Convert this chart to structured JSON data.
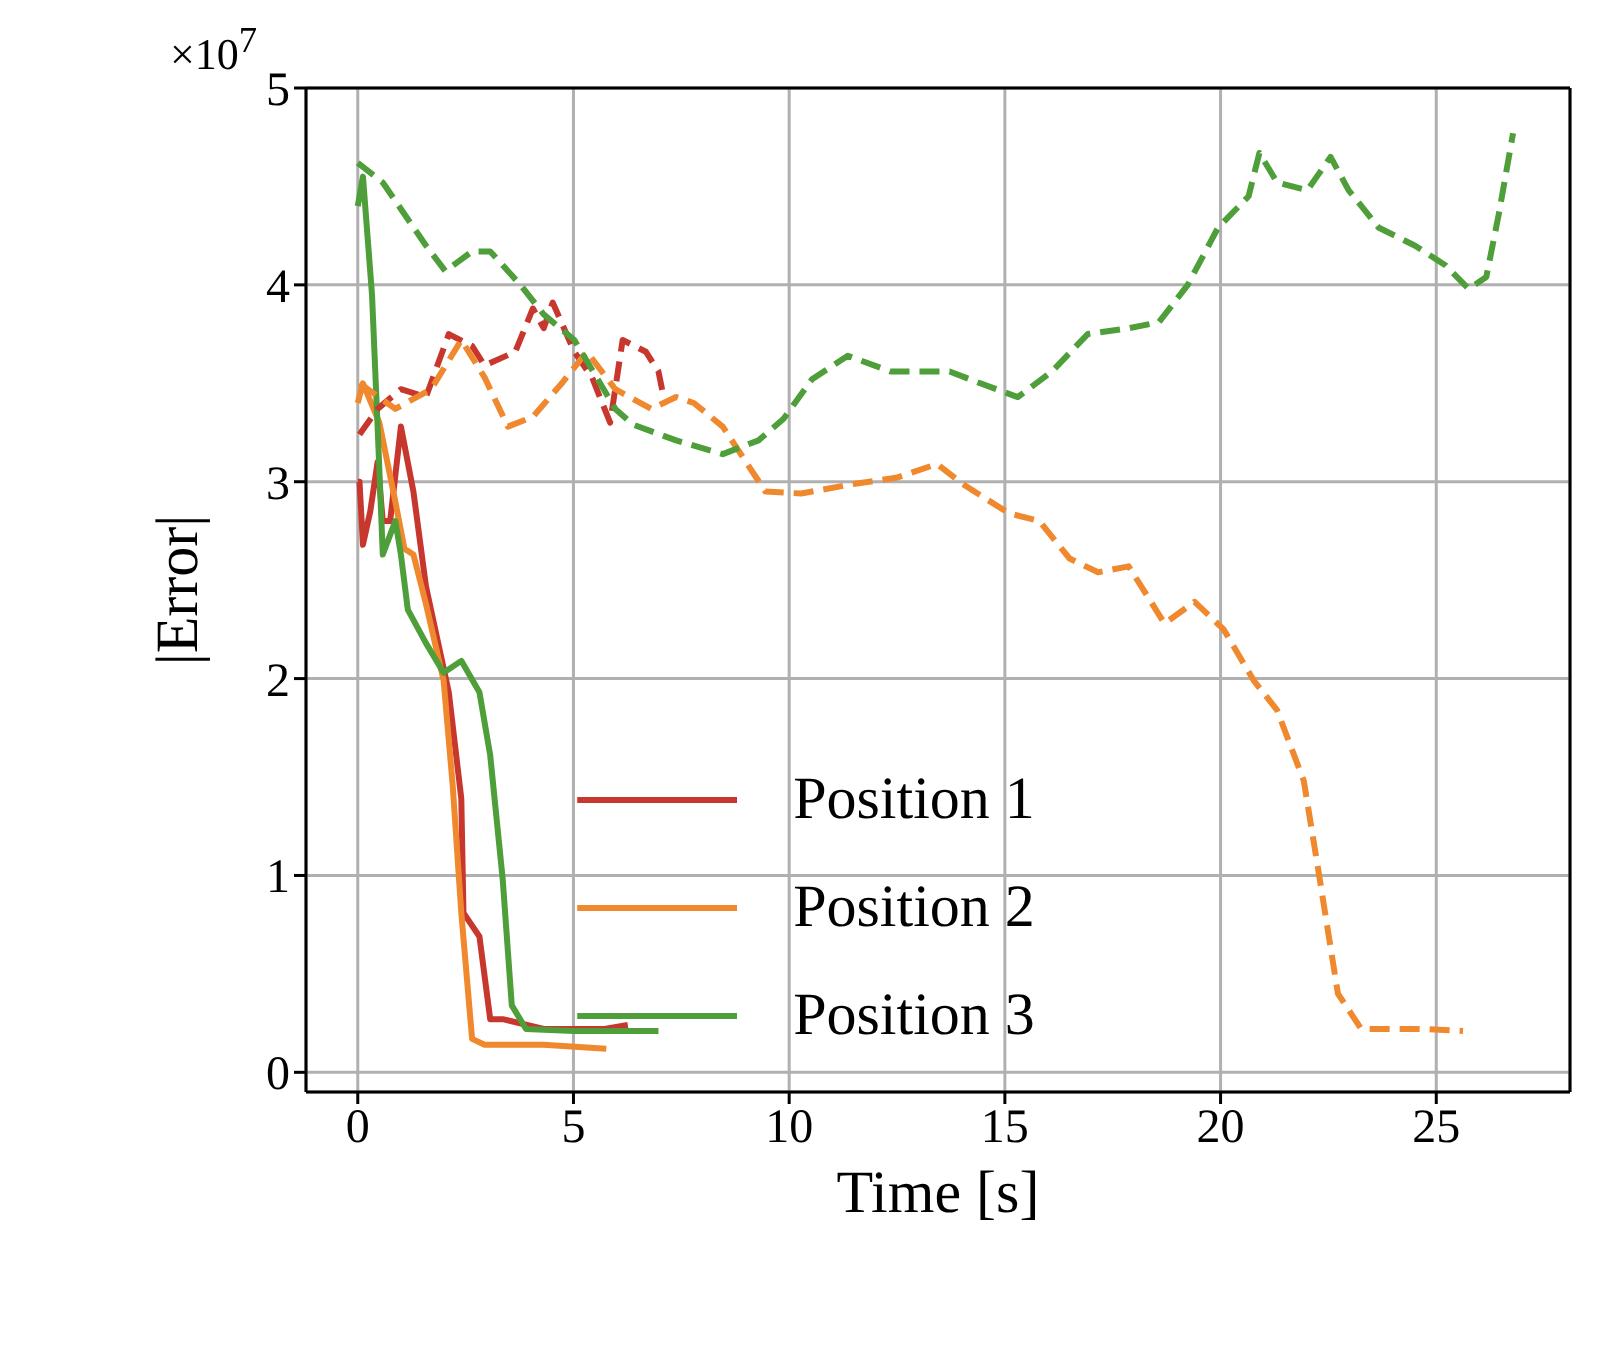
{
  "chart_data": {
    "type": "line",
    "xlabel": "Time [s]",
    "ylabel": "|Error|",
    "annotations": [
      "×10$^{7}$"
    ],
    "xlim": [
      -1.2,
      28.1
    ],
    "xticks": [
      0,
      5,
      10,
      15,
      20,
      25
    ],
    "ylim": [
      -0.1,
      5
    ],
    "yticks": [
      0,
      1,
      2,
      3,
      4,
      5
    ],
    "grid": true,
    "legend": "bottom",
    "marker": "none",
    "series": [
      {
        "name": "Position 1",
        "color": "#c8372d",
        "line_style": "solid",
        "x": [
          0,
          0.04,
          0.12,
          0.29,
          0.46,
          0.58,
          0.75,
          1.0,
          1.29,
          1.58,
          2.11,
          2.4,
          2.45,
          2.82,
          3.07,
          3.36,
          4.31,
          5.72,
          6.26
        ],
        "values": [
          3.0,
          3.0,
          2.68,
          2.85,
          3.1,
          2.8,
          2.8,
          3.28,
          2.95,
          2.47,
          1.93,
          1.39,
          0.81,
          0.69,
          0.27,
          0.27,
          0.22,
          0.22,
          0.24
        ]
      },
      {
        "name": "Position 2",
        "color": "#f0882e",
        "line_style": "solid",
        "x": [
          0,
          0.12,
          0.5,
          0.87,
          1.08,
          1.29,
          1.58,
          1.99,
          2.2,
          2.4,
          2.65,
          2.94,
          4.31,
          5.76
        ],
        "values": [
          3.4,
          3.5,
          3.3,
          2.9,
          2.66,
          2.63,
          2.38,
          1.99,
          1.46,
          0.81,
          0.17,
          0.14,
          0.14,
          0.12
        ]
      },
      {
        "name": "Position 3",
        "color": "#4e9e3a",
        "line_style": "solid",
        "x": [
          0,
          0.12,
          0.33,
          0.46,
          0.58,
          0.87,
          1.0,
          1.16,
          1.58,
          1.99,
          2.4,
          2.82,
          3.07,
          3.36,
          3.57,
          3.9,
          5.02,
          6.97
        ],
        "values": [
          4.4,
          4.55,
          3.95,
          3.28,
          2.63,
          2.8,
          2.63,
          2.35,
          2.18,
          2.03,
          2.09,
          1.93,
          1.61,
          0.98,
          0.34,
          0.22,
          0.21,
          0.21
        ]
      },
      {
        "color": "#c8372d",
        "line_style": "dashed",
        "x": [
          0.04,
          0.46,
          1.0,
          1.58,
          2.11,
          2.65,
          2.94,
          3.65,
          4.06,
          4.31,
          4.52,
          5.02,
          5.43,
          5.85,
          6.14,
          6.68,
          6.97,
          7.09
        ],
        "values": [
          3.24,
          3.37,
          3.47,
          3.43,
          3.75,
          3.69,
          3.59,
          3.66,
          3.88,
          3.78,
          3.91,
          3.66,
          3.53,
          3.3,
          3.72,
          3.66,
          3.56,
          3.43
        ]
      },
      {
        "color": "#f0882e",
        "line_style": "dashed",
        "x": [
          0.04,
          0.87,
          1.7,
          2.4,
          2.94,
          3.48,
          4.06,
          4.73,
          5.31,
          5.97,
          6.8,
          7.38,
          7.79,
          8.46,
          9.45,
          10.28,
          11.53,
          12.48,
          13.43,
          14.01,
          15.09,
          15.8,
          16.5,
          17.16,
          17.87,
          18.7,
          19.4,
          20.07,
          20.77,
          21.31,
          21.93,
          22.3,
          22.72,
          23.26,
          24.79,
          25.62
        ],
        "values": [
          3.5,
          3.37,
          3.47,
          3.72,
          3.53,
          3.28,
          3.33,
          3.5,
          3.66,
          3.47,
          3.37,
          3.43,
          3.4,
          3.28,
          2.95,
          2.94,
          2.99,
          3.02,
          3.09,
          2.99,
          2.84,
          2.8,
          2.61,
          2.54,
          2.57,
          2.28,
          2.39,
          2.25,
          1.99,
          1.84,
          1.48,
          0.98,
          0.4,
          0.22,
          0.22,
          0.21
        ]
      },
      {
        "color": "#4e9e3a",
        "line_style": "dashed",
        "x": [
          0,
          0.58,
          1.58,
          2.03,
          2.65,
          3.07,
          3.77,
          4.31,
          5.02,
          5.97,
          6.38,
          7.38,
          8.46,
          9.29,
          9.87,
          10.53,
          11.36,
          12.35,
          13.72,
          14.43,
          15.3,
          16.09,
          16.92,
          17.87,
          18.57,
          19.24,
          19.94,
          20.65,
          20.9,
          21.31,
          22.01,
          22.55,
          22.97,
          23.67,
          24.5,
          25.21,
          25.75,
          26.16,
          26.45,
          26.78
        ],
        "values": [
          4.62,
          4.52,
          4.2,
          4.07,
          4.17,
          4.17,
          4.0,
          3.85,
          3.72,
          3.37,
          3.29,
          3.21,
          3.14,
          3.21,
          3.32,
          3.52,
          3.64,
          3.56,
          3.56,
          3.5,
          3.43,
          3.56,
          3.75,
          3.78,
          3.81,
          4.0,
          4.29,
          4.45,
          4.67,
          4.52,
          4.48,
          4.65,
          4.48,
          4.29,
          4.2,
          4.1,
          3.98,
          4.04,
          4.36,
          4.77
        ]
      }
    ]
  }
}
